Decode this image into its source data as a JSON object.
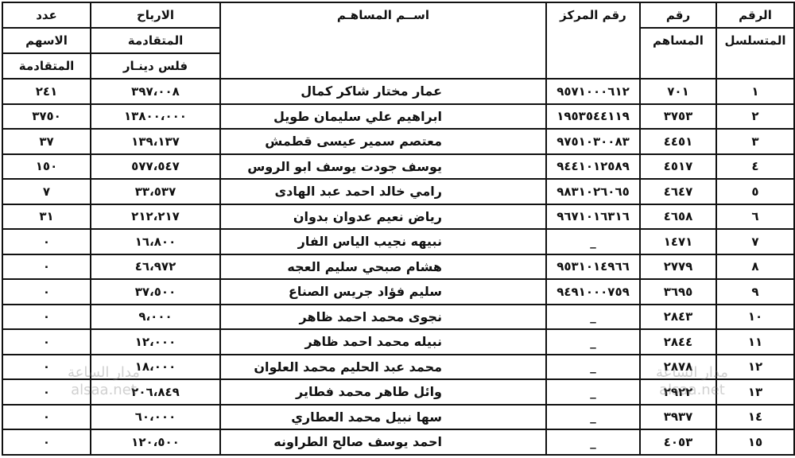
{
  "table": {
    "header": [
      [
        "الرقم",
        "المتسلسل"
      ],
      [
        "رقم",
        "المساهم"
      ],
      [
        "رقم المركز"
      ],
      [
        "اســم المساهـم"
      ],
      [
        "الارباح",
        "المتقادمة",
        "فلس  دينـار"
      ],
      [
        "عدد",
        "الاسهم",
        "المتقادمة"
      ]
    ],
    "rows": [
      [
        "١",
        "٧٠١",
        "٩٥٧١٠٠٠٦١٢",
        "عمار مختار شاكر كمال",
        "٣٩٧،٠٠٨",
        "٢٤١"
      ],
      [
        "٢",
        "٣٧٥٣",
        "١٩٥٣٥٤٤١١٩",
        "ابراهيم علي سليمان طويل",
        "١٣٨٠٠،٠٠٠",
        "٣٧٥٠"
      ],
      [
        "٣",
        "٤٤٥١",
        "٩٧٥١٠٣٠٠٨٣",
        "معتصم سمير عيسى قطمش",
        "١٣٩،١٣٧",
        "٣٧"
      ],
      [
        "٤",
        "٤٥١٧",
        "٩٤٤١٠١٢٥٨٩",
        "يوسف جودت يوسف ابو الروس",
        "٥٧٧،٥٤٧",
        "١٥٠"
      ],
      [
        "٥",
        "٤٦٤٧",
        "٩٨٣١٠٢٦٠٦٥",
        "رامي خالد احمد عبد الهادى",
        "٣٣،٥٣٧",
        "٧"
      ],
      [
        "٦",
        "٤٦٥٨",
        "٩٦٧١٠١٦٣١٦",
        "رياض نعيم عدوان بدوان",
        "٢١٢،٢١٧",
        "٣١"
      ],
      [
        "٧",
        "١٤٧١",
        "_",
        "نبيهه نجيب الياس الفار",
        "١٦،٨٠٠",
        "٠"
      ],
      [
        "٨",
        "٢٧٧٩",
        "٩٥٣١٠١٤٩٦٦",
        "هشام صبحي سليم العجه",
        "٤٦،٩٧٢",
        "٠"
      ],
      [
        "٩",
        "٣٦٩٥",
        "٩٤٩١٠٠٠٧٥٩",
        "سليم فؤاد جريس الصناع",
        "٣٧،٥٠٠",
        "٠"
      ],
      [
        "١٠",
        "٢٨٤٣",
        "_",
        "نجوى محمد احمد ظاهر",
        "٩،٠٠٠",
        "٠"
      ],
      [
        "١١",
        "٢٨٤٤",
        "_",
        "نبيله محمد احمد ظاهر",
        "١٢،٠٠٠",
        "٠"
      ],
      [
        "١٢",
        "٢٨٧٨",
        "_",
        "محمد عبد الحليم محمد العلوان",
        "١٨،٠٠٠",
        "٠"
      ],
      [
        "١٣",
        "٢٩٢٢",
        "_",
        "وائل طاهر محمد فطاير",
        "٢٠٦،٨٤٩",
        "٠"
      ],
      [
        "١٤",
        "٣٩٣٧",
        "_",
        "سها نبيل محمد العطاري",
        "٦٠،٠٠٠",
        "٠"
      ],
      [
        "١٥",
        "٤٠٥٣",
        "_",
        "احمد يوسف صالح الطراونه",
        "١٢٠،٥٠٠",
        "٠"
      ]
    ]
  },
  "watermark": [
    "مدار الساعة",
    "alsaa.net"
  ]
}
